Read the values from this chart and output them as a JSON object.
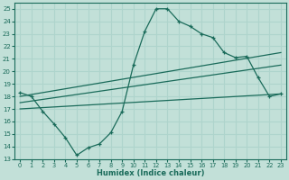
{
  "xlabel": "Humidex (Indice chaleur)",
  "bg_color": "#c2e0d8",
  "grid_color": "#aed4cc",
  "line_color": "#1a6b5a",
  "xlim": [
    -0.5,
    23.5
  ],
  "ylim": [
    13,
    25.5
  ],
  "xticks": [
    0,
    1,
    2,
    3,
    4,
    5,
    6,
    7,
    8,
    9,
    10,
    11,
    12,
    13,
    14,
    15,
    16,
    17,
    18,
    19,
    20,
    21,
    22,
    23
  ],
  "yticks": [
    13,
    14,
    15,
    16,
    17,
    18,
    19,
    20,
    21,
    22,
    23,
    24,
    25
  ],
  "series": [
    {
      "x": [
        0,
        1,
        2,
        3,
        4,
        5,
        6,
        7,
        8,
        9,
        10,
        11,
        12,
        13,
        14,
        15,
        16,
        17,
        18,
        19,
        20,
        21,
        22,
        23
      ],
      "y": [
        18.3,
        18.0,
        16.8,
        15.8,
        14.7,
        13.3,
        13.9,
        14.2,
        15.1,
        16.8,
        20.5,
        23.2,
        25.0,
        25.0,
        24.0,
        23.6,
        23.0,
        22.7,
        21.5,
        21.1,
        21.2,
        19.5,
        18.0,
        18.2
      ]
    },
    {
      "x": [
        0,
        23
      ],
      "y": [
        18.0,
        21.5
      ]
    },
    {
      "x": [
        0,
        23
      ],
      "y": [
        17.5,
        20.5
      ]
    },
    {
      "x": [
        0,
        23
      ],
      "y": [
        17.0,
        18.2
      ]
    }
  ]
}
